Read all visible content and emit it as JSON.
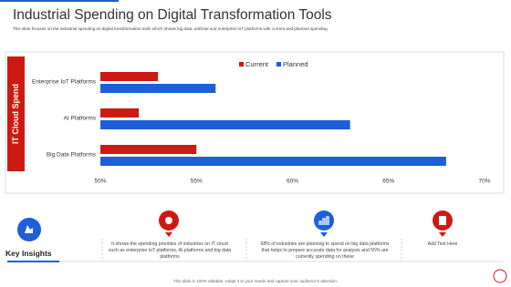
{
  "header": {
    "title": "Industrial Spending on Digital Transformation Tools",
    "subtitle": "This slide focuses on the industrial spending on digital transformation tools which shows big data, artificial and enterprise IoT platforms with current and planned spending."
  },
  "chart_data": {
    "type": "hbar",
    "y_label": "IT Cloud Spend",
    "categories": [
      "Enterprise IoT Platforms",
      "AI Platforms",
      "Big Data Platforms"
    ],
    "series": [
      {
        "name": "Current",
        "color": "#cc1a12",
        "values": [
          53,
          52,
          55
        ]
      },
      {
        "name": "Planned",
        "color": "#1d5fd8",
        "values": [
          56,
          63,
          68
        ]
      }
    ],
    "xlim": [
      50,
      70
    ],
    "xticks": [
      {
        "value": 50,
        "label": "50%"
      },
      {
        "value": 55,
        "label": "55%"
      },
      {
        "value": 60,
        "label": "60%"
      },
      {
        "value": 65,
        "label": "65%"
      },
      {
        "value": 70,
        "label": "70%"
      }
    ],
    "legend": "top"
  },
  "insights": {
    "title": "Key Insights",
    "items": [
      "It shows the spending priorities of industries on IT cloud such as enterprise IoT platforms, AI platforms and big data platforms",
      "68% of industries are planning to spend on big data platforms that helps to prepare accurate data for analysis and 55% are currently spending on these",
      "Add Text Here"
    ]
  },
  "footer": "This slide is 100% editable. Adapt it to your needs and capture your audience's attention."
}
